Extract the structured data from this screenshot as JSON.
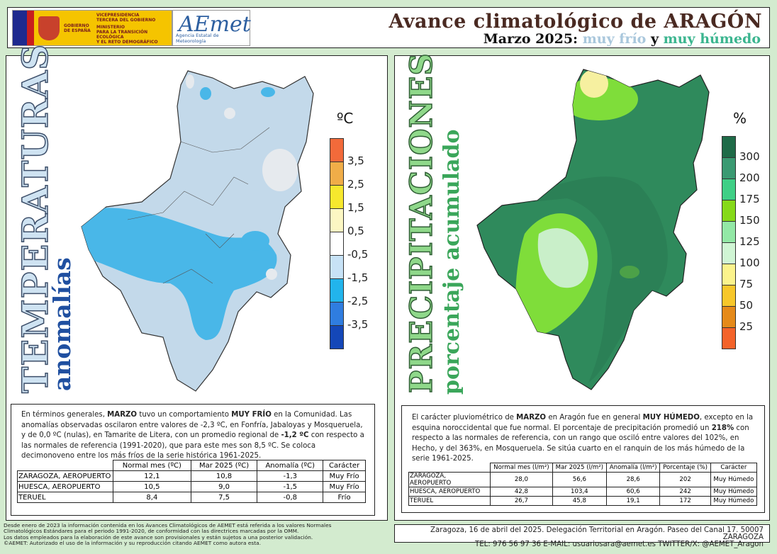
{
  "header": {
    "gov_text": "GOBIERNO DE ESPAÑA",
    "ministry_lines": [
      "VICEPRESIDENCIA",
      "TERCERA DEL GOBIERNO",
      "MINISTERIO",
      "PARA LA TRANSICIÓN ECOLÓGICA",
      "Y EL RETO DEMOGRÁFICO"
    ],
    "aemet_logo": "AEmet",
    "aemet_subtitle": "Agencia Estatal de Meteorología",
    "title": "Avance climatológico de ARAGÓN",
    "subtitle_month": "Marzo 2025:",
    "subtitle_cold": "muy frío",
    "subtitle_and": "y",
    "subtitle_wet": "muy húmedo"
  },
  "temperature": {
    "vertical_title": "TEMPERATURAS",
    "vertical_subtitle": "anomalías",
    "legend_unit": "ºC",
    "legend_labels": [
      "3,5",
      "2,5",
      "1,5",
      "0,5",
      "-0,5",
      "-1,5",
      "-2,5",
      "-3,5"
    ],
    "legend_colors": [
      "#f26a3a",
      "#f0ad48",
      "#f7e82d",
      "#fcf7c3",
      "#ffffff",
      "#c7e2f6",
      "#22b4ec",
      "#2f7de0",
      "#1447b8"
    ],
    "text": {
      "p1": "En términos generales, ",
      "b1": "MARZO",
      "p2": " tuvo un comportamiento ",
      "b2": "MUY FRÍO",
      "p3": " en la Comunidad. Las anomalías observadas oscilaron entre valores de -2,3 ºC, en Fonfría, Jabaloyas y Mosqueruela, y de 0,0 ºC (nulas), en Tamarite de Litera, con un promedio regional de ",
      "b3": "-1,2 ºC",
      "p4": " con respecto a las normales de referencia (1991-2020), que para este mes son 8,5 ºC. Se coloca decimonoveno entre los más fríos de la serie histórica 1961-2025."
    },
    "table": {
      "headers": [
        "Normal mes (ºC)",
        "Mar 2025 (ºC)",
        "Anomalía (ºC)",
        "Carácter"
      ],
      "rows": [
        {
          "station": "ZARAGOZA, AEROPUERTO",
          "values": [
            "12,1",
            "10,8",
            "-1,3",
            "Muy Frío"
          ]
        },
        {
          "station": "HUESCA, AEROPUERTO",
          "values": [
            "10,5",
            "9,0",
            "-1,5",
            "Muy Frío"
          ]
        },
        {
          "station": "TERUEL",
          "values": [
            "8,4",
            "7,5",
            "-0,8",
            "Frío"
          ]
        }
      ]
    }
  },
  "precipitation": {
    "vertical_title": "PRECIPITACIONES",
    "vertical_subtitle": "porcentaje acumulado",
    "legend_unit": "%",
    "legend_labels": [
      "300",
      "200",
      "175",
      "150",
      "125",
      "100",
      "75",
      "50",
      "25"
    ],
    "legend_colors": [
      "#1f6b48",
      "#3a9a72",
      "#3fcf86",
      "#86d919",
      "#93e8a6",
      "#d0f5d4",
      "#fbf38c",
      "#f7c72a",
      "#e58a1a",
      "#f4632a"
    ],
    "text": {
      "p1": "El carácter pluviométrico de ",
      "b1": "MARZO",
      "p2": " en Aragón fue en general ",
      "b2": "MUY HÚMEDO",
      "p3": ", excepto en la esquina noroccidental que fue normal. El porcentaje de precipitación promedió un ",
      "b3": "218%",
      "p4": " con respecto a las normales de referencia, con un rango que osciló entre valores del 102%, en Hecho, y del 363%, en Mosqueruela. Se sitúa cuarto en el ranquin de los más húmedo de la serie 1961-2025."
    },
    "table": {
      "headers": [
        "Normal mes (l/m²)",
        "Mar 2025 (l/m²)",
        "Anomalía (l/m²)",
        "Porcentaje (%)",
        "Carácter"
      ],
      "rows": [
        {
          "station": "ZARAGOZA, AEROPUERTO",
          "values": [
            "28,0",
            "56,6",
            "28,6",
            "202",
            "Muy Húmedo"
          ]
        },
        {
          "station": "HUESCA, AEROPUERTO",
          "values": [
            "42,8",
            "103,4",
            "60,6",
            "242",
            "Muy Húmedo"
          ]
        },
        {
          "station": "TERUEL",
          "values": [
            "26,7",
            "45,8",
            "19,1",
            "172",
            "Muy Húmedo"
          ]
        }
      ]
    }
  },
  "notes": [
    "Desde enero de 2023 la información contenida en los Avances Climatológicos de AEMET está referida a los valores Normales",
    "Climatológicos Estándares para el periodo 1991-2020, de conformidad con las directrices marcadas por la OMM.",
    "Los datos empleados para la elaboración de este avance son provisionales y están sujetos a una posterior validación.",
    "©AEMET: Autorizado el uso de la información y su reproducción citando AEMET como autora esta."
  ],
  "footer": {
    "line1": "Zaragoza, 16 de abril del 2025. Delegación Territorial en Aragón. Paseo del Canal 17. 50007 ZARAGOZA",
    "line2": "TEL: 976 56 97 36 E-MAIL: usuariosara@aemet.es  TWITTER/X: @AEMET_Aragon"
  }
}
